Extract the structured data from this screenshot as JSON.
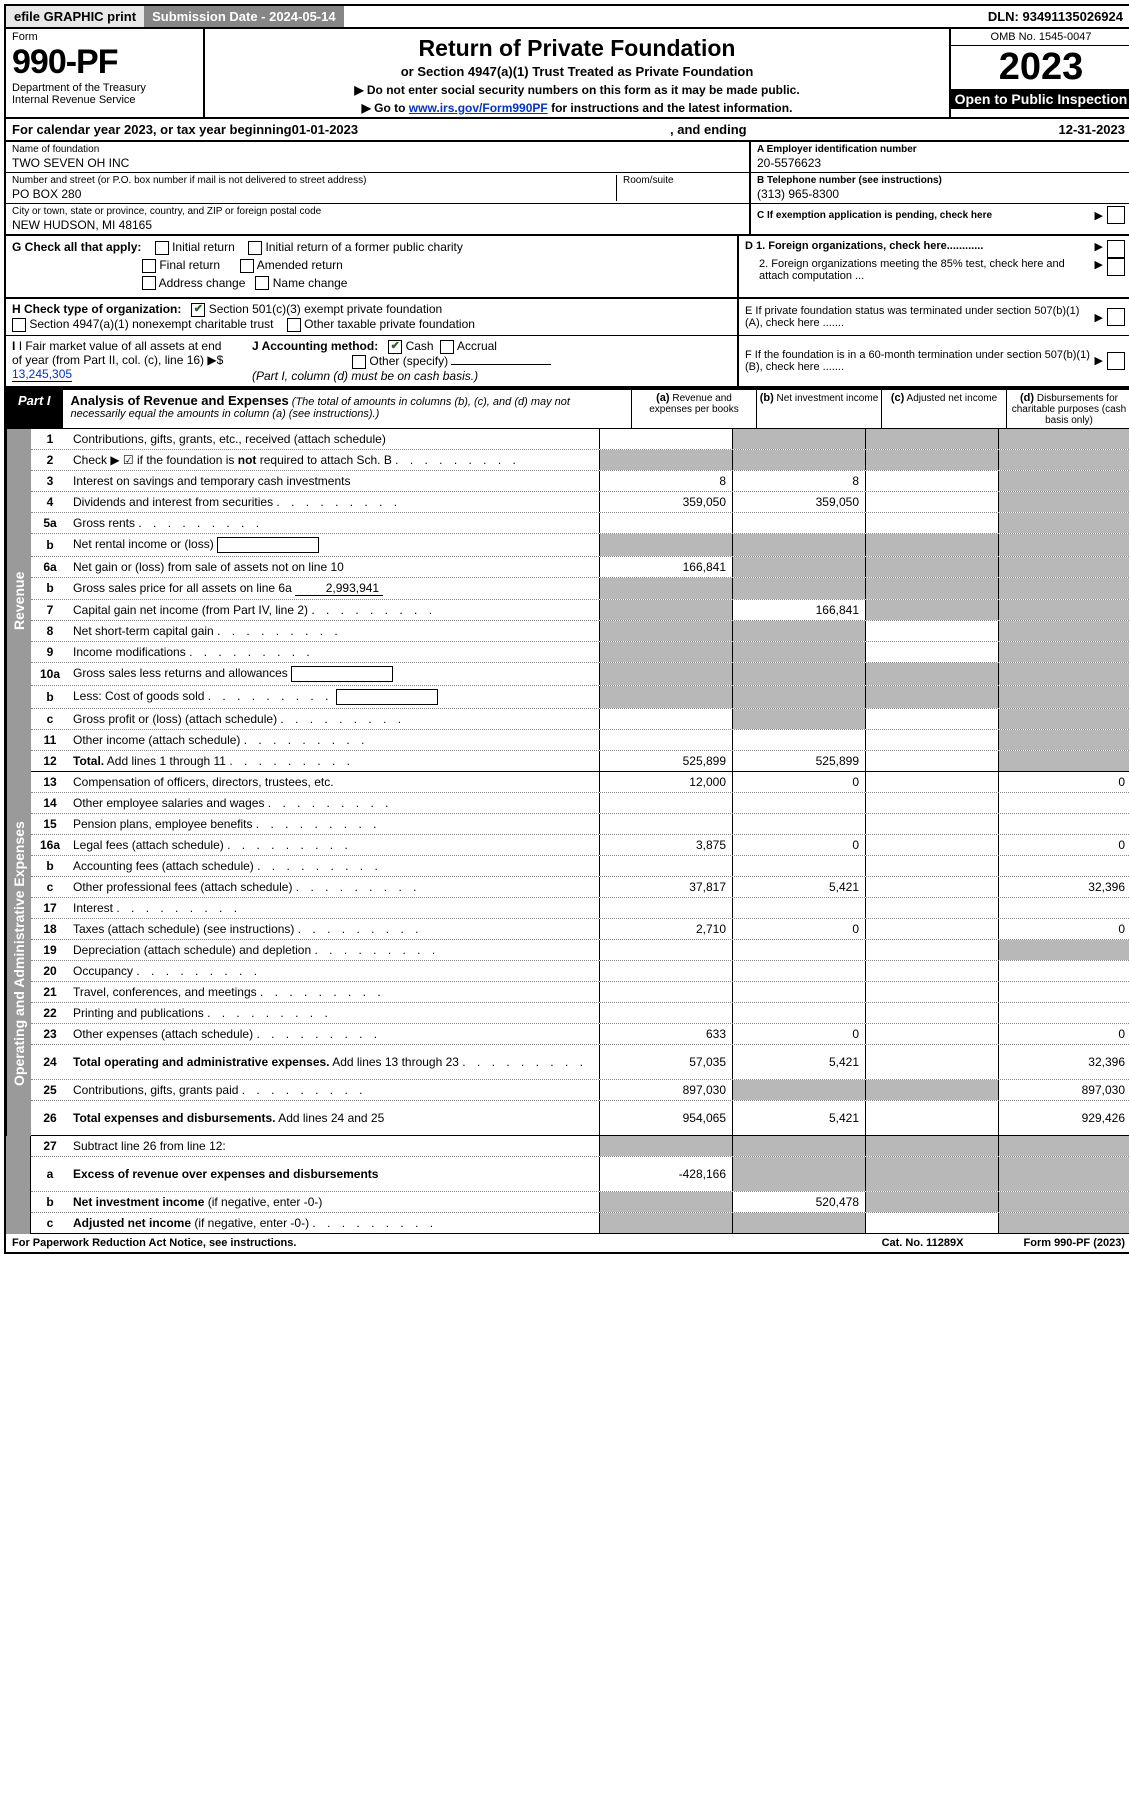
{
  "topbar": {
    "efile": "efile GRAPHIC print",
    "submission_label": "Submission Date - 2024-05-14",
    "dln": "DLN: 93491135026924"
  },
  "header": {
    "form_word": "Form",
    "form_no": "990-PF",
    "dept": "Department of the Treasury",
    "irs": "Internal Revenue Service",
    "title": "Return of Private Foundation",
    "subtitle": "or Section 4947(a)(1) Trust Treated as Private Foundation",
    "inst1": "▶ Do not enter social security numbers on this form as it may be made public.",
    "inst2_pre": "▶ Go to ",
    "inst2_link": "www.irs.gov/Form990PF",
    "inst2_post": " for instructions and the latest information.",
    "omb": "OMB No. 1545-0047",
    "year": "2023",
    "open": "Open to Public Inspection"
  },
  "calyear": {
    "pre": "For calendar year 2023, or tax year beginning ",
    "begin": "01-01-2023",
    "mid": ", and ending ",
    "end": "12-31-2023"
  },
  "meta": {
    "name_lbl": "Name of foundation",
    "name_val": "TWO SEVEN OH INC",
    "addr_lbl": "Number and street (or P.O. box number if mail is not delivered to street address)",
    "addr_val": "PO BOX 280",
    "room_lbl": "Room/suite",
    "city_lbl": "City or town, state or province, country, and ZIP or foreign postal code",
    "city_val": "NEW HUDSON, MI  48165",
    "a_lbl": "A Employer identification number",
    "a_val": "20-5576623",
    "b_lbl": "B Telephone number (see instructions)",
    "b_val": "(313) 965-8300",
    "c_lbl": "C If exemption application is pending, check here"
  },
  "checks": {
    "g_lbl": "G Check all that apply:",
    "g_opts": [
      "Initial return",
      "Initial return of a former public charity",
      "Final return",
      "Amended return",
      "Address change",
      "Name change"
    ],
    "d1": "D 1. Foreign organizations, check here............",
    "d2": "2. Foreign organizations meeting the 85% test, check here and attach computation ...",
    "e": "E  If private foundation status was terminated under section 507(b)(1)(A), check here .......",
    "h_lbl": "H Check type of organization:",
    "h_opts": [
      "Section 501(c)(3) exempt private foundation",
      "Section 4947(a)(1) nonexempt charitable trust",
      "Other taxable private foundation"
    ],
    "i_lbl": "I Fair market value of all assets at end of year (from Part II, col. (c), line 16)",
    "i_val": "13,245,305",
    "j_lbl": "J Accounting method:",
    "j_opts": [
      "Cash",
      "Accrual",
      "Other (specify)"
    ],
    "j_note": "(Part I, column (d) must be on cash basis.)",
    "f": "F  If the foundation is in a 60-month termination under section 507(b)(1)(B), check here ......."
  },
  "part1": {
    "label": "Part I",
    "title": "Analysis of Revenue and Expenses",
    "note": "(The total of amounts in columns (b), (c), and (d) may not necessarily equal the amounts in column (a) (see instructions).)",
    "cols": [
      {
        "k": "(a)",
        "t": "Revenue and expenses per books"
      },
      {
        "k": "(b)",
        "t": "Net investment income"
      },
      {
        "k": "(c)",
        "t": "Adjusted net income"
      },
      {
        "k": "(d)",
        "t": "Disbursements for charitable purposes (cash basis only)"
      }
    ]
  },
  "vert": {
    "rev": "Revenue",
    "exp": "Operating and Administrative Expenses"
  },
  "rows": [
    {
      "sec": "rev",
      "no": "1",
      "desc": "Contributions, gifts, grants, etc., received (attach schedule)",
      "a": "",
      "b": null,
      "c": null,
      "d": null,
      "shade": [
        "b",
        "c",
        "d"
      ]
    },
    {
      "sec": "rev",
      "no": "2",
      "desc": "Check ▶ ☑ if the foundation is <b>not</b> required to attach Sch. B",
      "a": null,
      "b": null,
      "c": null,
      "d": null,
      "shade": [
        "a",
        "b",
        "c",
        "d"
      ],
      "allshade": true,
      "dots": true
    },
    {
      "sec": "rev",
      "no": "3",
      "desc": "Interest on savings and temporary cash investments",
      "a": "8",
      "b": "8",
      "c": "",
      "d": null,
      "shade": [
        "d"
      ]
    },
    {
      "sec": "rev",
      "no": "4",
      "desc": "Dividends and interest from securities",
      "a": "359,050",
      "b": "359,050",
      "c": "",
      "d": null,
      "shade": [
        "d"
      ],
      "dots": true
    },
    {
      "sec": "rev",
      "no": "5a",
      "desc": "Gross rents",
      "a": "",
      "b": "",
      "c": "",
      "d": null,
      "shade": [
        "d"
      ],
      "dots": true
    },
    {
      "sec": "rev",
      "no": "b",
      "desc": "Net rental income or (loss)",
      "a": null,
      "b": null,
      "c": null,
      "d": null,
      "shade": [
        "a",
        "b",
        "c",
        "d"
      ],
      "inset": true
    },
    {
      "sec": "rev",
      "no": "6a",
      "desc": "Net gain or (loss) from sale of assets not on line 10",
      "a": "166,841",
      "b": null,
      "c": null,
      "d": null,
      "shade": [
        "b",
        "c",
        "d"
      ]
    },
    {
      "sec": "rev",
      "no": "b",
      "desc": "Gross sales price for all assets on line 6a",
      "a": null,
      "b": null,
      "c": null,
      "d": null,
      "shade": [
        "a",
        "b",
        "c",
        "d"
      ],
      "inline_val": "2,993,941"
    },
    {
      "sec": "rev",
      "no": "7",
      "desc": "Capital gain net income (from Part IV, line 2)",
      "a": null,
      "b": "166,841",
      "c": null,
      "d": null,
      "shade": [
        "a",
        "c",
        "d"
      ],
      "dots": true
    },
    {
      "sec": "rev",
      "no": "8",
      "desc": "Net short-term capital gain",
      "a": null,
      "b": null,
      "c": "",
      "d": null,
      "shade": [
        "a",
        "b",
        "d"
      ],
      "dots": true
    },
    {
      "sec": "rev",
      "no": "9",
      "desc": "Income modifications",
      "a": null,
      "b": null,
      "c": "",
      "d": null,
      "shade": [
        "a",
        "b",
        "d"
      ],
      "dots": true
    },
    {
      "sec": "rev",
      "no": "10a",
      "desc": "Gross sales less returns and allowances",
      "a": null,
      "b": null,
      "c": null,
      "d": null,
      "shade": [
        "a",
        "b",
        "c",
        "d"
      ],
      "inset": true
    },
    {
      "sec": "rev",
      "no": "b",
      "desc": "Less: Cost of goods sold",
      "a": null,
      "b": null,
      "c": null,
      "d": null,
      "shade": [
        "a",
        "b",
        "c",
        "d"
      ],
      "inset": true,
      "dots": true
    },
    {
      "sec": "rev",
      "no": "c",
      "desc": "Gross profit or (loss) (attach schedule)",
      "a": "",
      "b": null,
      "c": "",
      "d": null,
      "shade": [
        "b",
        "d"
      ],
      "dots": true
    },
    {
      "sec": "rev",
      "no": "11",
      "desc": "Other income (attach schedule)",
      "a": "",
      "b": "",
      "c": "",
      "d": null,
      "shade": [
        "d"
      ],
      "dots": true
    },
    {
      "sec": "rev",
      "no": "12",
      "desc": "<b>Total.</b> Add lines 1 through 11",
      "a": "525,899",
      "b": "525,899",
      "c": "",
      "d": null,
      "shade": [
        "d"
      ],
      "dots": true,
      "solid": true
    },
    {
      "sec": "exp",
      "no": "13",
      "desc": "Compensation of officers, directors, trustees, etc.",
      "a": "12,000",
      "b": "0",
      "c": "",
      "d": "0"
    },
    {
      "sec": "exp",
      "no": "14",
      "desc": "Other employee salaries and wages",
      "a": "",
      "b": "",
      "c": "",
      "d": "",
      "dots": true
    },
    {
      "sec": "exp",
      "no": "15",
      "desc": "Pension plans, employee benefits",
      "a": "",
      "b": "",
      "c": "",
      "d": "",
      "dots": true
    },
    {
      "sec": "exp",
      "no": "16a",
      "desc": "Legal fees (attach schedule)",
      "a": "3,875",
      "b": "0",
      "c": "",
      "d": "0",
      "dots": true
    },
    {
      "sec": "exp",
      "no": "b",
      "desc": "Accounting fees (attach schedule)",
      "a": "",
      "b": "",
      "c": "",
      "d": "",
      "dots": true
    },
    {
      "sec": "exp",
      "no": "c",
      "desc": "Other professional fees (attach schedule)",
      "a": "37,817",
      "b": "5,421",
      "c": "",
      "d": "32,396",
      "dots": true
    },
    {
      "sec": "exp",
      "no": "17",
      "desc": "Interest",
      "a": "",
      "b": "",
      "c": "",
      "d": "",
      "dots": true
    },
    {
      "sec": "exp",
      "no": "18",
      "desc": "Taxes (attach schedule) (see instructions)",
      "a": "2,710",
      "b": "0",
      "c": "",
      "d": "0",
      "dots": true
    },
    {
      "sec": "exp",
      "no": "19",
      "desc": "Depreciation (attach schedule) and depletion",
      "a": "",
      "b": "",
      "c": "",
      "d": null,
      "shade": [
        "d"
      ],
      "dots": true
    },
    {
      "sec": "exp",
      "no": "20",
      "desc": "Occupancy",
      "a": "",
      "b": "",
      "c": "",
      "d": "",
      "dots": true
    },
    {
      "sec": "exp",
      "no": "21",
      "desc": "Travel, conferences, and meetings",
      "a": "",
      "b": "",
      "c": "",
      "d": "",
      "dots": true
    },
    {
      "sec": "exp",
      "no": "22",
      "desc": "Printing and publications",
      "a": "",
      "b": "",
      "c": "",
      "d": "",
      "dots": true
    },
    {
      "sec": "exp",
      "no": "23",
      "desc": "Other expenses (attach schedule)",
      "a": "633",
      "b": "0",
      "c": "",
      "d": "0",
      "dots": true
    },
    {
      "sec": "exp",
      "no": "24",
      "desc": "<b>Total operating and administrative expenses.</b> Add lines 13 through 23",
      "a": "57,035",
      "b": "5,421",
      "c": "",
      "d": "32,396",
      "dots": true,
      "multi": true
    },
    {
      "sec": "exp",
      "no": "25",
      "desc": "Contributions, gifts, grants paid",
      "a": "897,030",
      "b": null,
      "c": null,
      "d": "897,030",
      "shade": [
        "b",
        "c"
      ],
      "dots": true
    },
    {
      "sec": "exp",
      "no": "26",
      "desc": "<b>Total expenses and disbursements.</b> Add lines 24 and 25",
      "a": "954,065",
      "b": "5,421",
      "c": "",
      "d": "929,426",
      "multi": true,
      "solid": true
    },
    {
      "sec": "",
      "no": "27",
      "desc": "Subtract line 26 from line 12:",
      "a": null,
      "b": null,
      "c": null,
      "d": null,
      "shade": [
        "a",
        "b",
        "c",
        "d"
      ]
    },
    {
      "sec": "",
      "no": "a",
      "desc": "<b>Excess of revenue over expenses and disbursements</b>",
      "a": "-428,166",
      "b": null,
      "c": null,
      "d": null,
      "shade": [
        "b",
        "c",
        "d"
      ],
      "multi": true
    },
    {
      "sec": "",
      "no": "b",
      "desc": "<b>Net investment income</b> (if negative, enter -0-)",
      "a": null,
      "b": "520,478",
      "c": null,
      "d": null,
      "shade": [
        "a",
        "c",
        "d"
      ]
    },
    {
      "sec": "",
      "no": "c",
      "desc": "<b>Adjusted net income</b> (if negative, enter -0-)",
      "a": null,
      "b": null,
      "c": "",
      "d": null,
      "shade": [
        "a",
        "b",
        "d"
      ],
      "dots": true,
      "solid": true
    }
  ],
  "footer": {
    "left": "For Paperwork Reduction Act Notice, see instructions.",
    "mid": "Cat. No. 11289X",
    "right": "Form 990-PF (2023)"
  }
}
